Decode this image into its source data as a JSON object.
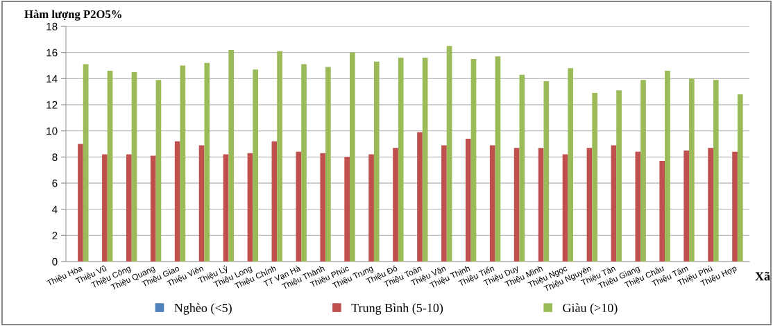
{
  "chart_data": {
    "type": "bar",
    "ylabel": "Hàm lượng P2O5%",
    "xlabel": "Xã",
    "categories": [
      "Thiệu Hòa",
      "Thiệu Vũ",
      "Thiệu Công",
      "Thiệu Quang",
      "Thiệu Giao",
      "Thiệu Viên",
      "Thiệu Lý",
      "Thiệu Long",
      "Thiệu Chính",
      "TT Vạn Hà",
      "Thiệu Thành",
      "Thiệu Phúc",
      "Thiệu Trung",
      "Thiệu Đô",
      "Thiệu Toán",
      "Thiệu Vận",
      "Thiệu Thịnh",
      "Thiệu Tiến",
      "Thiệu Duy",
      "Thiệu Minh",
      "Thiệu Ngọc",
      "Thiệu Nguyên",
      "Thiệu Tân",
      "Thiệu Giang",
      "Thiệu Châu",
      "Thiệu Tâm",
      "Thiệu Phú",
      "Thiệu Hợp"
    ],
    "series": [
      {
        "name": "Nghèo (<5)",
        "color": "#4f81bd",
        "values": [
          null,
          null,
          null,
          null,
          null,
          null,
          null,
          null,
          null,
          null,
          null,
          null,
          null,
          null,
          null,
          null,
          null,
          null,
          null,
          null,
          null,
          null,
          null,
          null,
          null,
          null,
          null,
          null
        ]
      },
      {
        "name": "Trung Bình (5-10)",
        "color": "#c0504d",
        "values": [
          9.0,
          8.2,
          8.2,
          8.1,
          9.2,
          8.9,
          8.2,
          8.3,
          9.2,
          8.4,
          8.3,
          8.0,
          8.2,
          8.7,
          9.9,
          8.9,
          9.4,
          8.9,
          8.7,
          8.7,
          8.2,
          8.7,
          8.9,
          8.4,
          7.7,
          8.5,
          8.7,
          8.4
        ]
      },
      {
        "name": "Giàu (>10)",
        "color": "#9bbb59",
        "values": [
          15.1,
          14.6,
          14.5,
          13.9,
          15.0,
          15.2,
          16.2,
          14.7,
          16.1,
          15.1,
          14.9,
          16.0,
          15.3,
          15.6,
          15.6,
          16.5,
          15.5,
          15.7,
          14.3,
          13.8,
          14.8,
          12.9,
          13.1,
          13.9,
          14.6,
          14.0,
          13.9,
          12.8
        ]
      }
    ],
    "ylim": [
      0,
      18
    ],
    "yticks": [
      0,
      2,
      4,
      6,
      8,
      10,
      12,
      14,
      16,
      18
    ],
    "grid": "y",
    "legend": "bottom"
  }
}
